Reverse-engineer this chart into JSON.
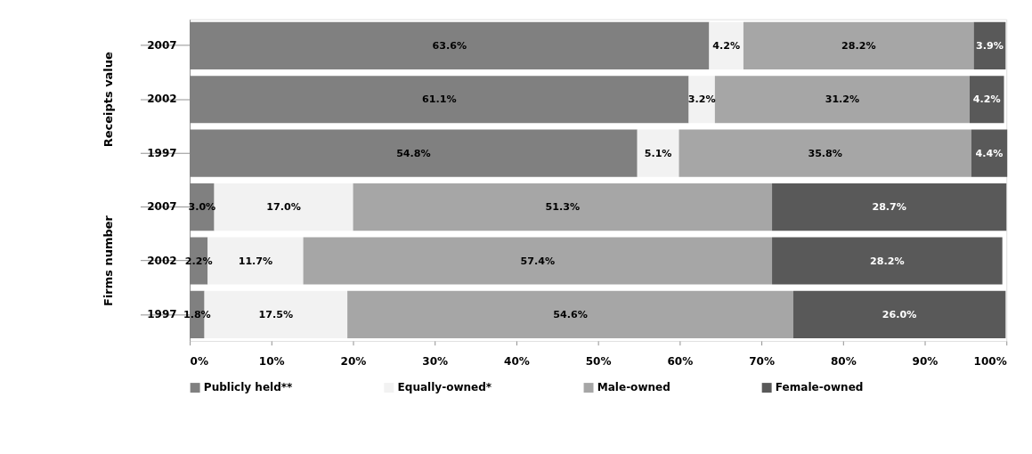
{
  "chart_data": {
    "type": "bar",
    "orientation": "horizontal",
    "stacked": true,
    "categories": [
      "2007",
      "2002",
      "1997",
      "2007",
      "2002",
      "1997"
    ],
    "series": [
      {
        "name": "Publicly held**",
        "color": "#808080",
        "values": [
          63.6,
          61.1,
          54.8,
          3.0,
          2.2,
          1.8
        ],
        "value_labels": [
          "63.6%",
          "61.1%",
          "54.8%",
          "3.0%",
          "2.2%",
          "1.8%"
        ]
      },
      {
        "name": "Equally-owned*",
        "color": "#f2f2f2",
        "values": [
          4.2,
          3.2,
          5.1,
          17.0,
          11.7,
          17.5
        ],
        "value_labels": [
          "4.2%",
          "3.2%",
          "5.1%",
          "17.0%",
          "11.7%",
          "17.5%"
        ]
      },
      {
        "name": "Male-owned",
        "color": "#a6a6a6",
        "values": [
          28.2,
          31.2,
          35.8,
          51.3,
          57.4,
          54.6
        ],
        "value_labels": [
          "28.2%",
          "31.2%",
          "35.8%",
          "51.3%",
          "57.4%",
          "54.6%"
        ]
      },
      {
        "name": "Female-owned",
        "color": "#595959",
        "values": [
          3.9,
          4.2,
          4.4,
          28.7,
          28.2,
          26.0
        ],
        "value_labels": [
          "3.9%",
          "4.2%",
          "4.4%",
          "28.7%",
          "28.2%",
          "26.0%"
        ]
      }
    ],
    "xlim": [
      0,
      100
    ],
    "xticks": [
      {
        "value": 0,
        "label": "0%"
      },
      {
        "value": 10,
        "label": "10%"
      },
      {
        "value": 20,
        "label": "20%"
      },
      {
        "value": 30,
        "label": "30%"
      },
      {
        "value": 40,
        "label": "40%"
      },
      {
        "value": 50,
        "label": "50%"
      },
      {
        "value": 60,
        "label": "60%"
      },
      {
        "value": 70,
        "label": "70%"
      },
      {
        "value": 80,
        "label": "80%"
      },
      {
        "value": 90,
        "label": "90%"
      },
      {
        "value": 100,
        "label": "100%"
      }
    ],
    "annotations": [
      "Receipts value",
      "Firms number"
    ],
    "legend": "bottom",
    "grid": false
  }
}
